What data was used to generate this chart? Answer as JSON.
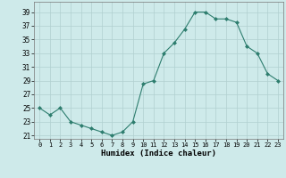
{
  "x": [
    0,
    1,
    2,
    3,
    4,
    5,
    6,
    7,
    8,
    9,
    10,
    11,
    12,
    13,
    14,
    15,
    16,
    17,
    18,
    19,
    20,
    21,
    22,
    23
  ],
  "y": [
    25,
    24,
    25,
    23,
    22.5,
    22,
    21.5,
    21,
    21.5,
    23,
    28.5,
    29,
    33,
    34.5,
    36.5,
    39,
    39,
    38,
    38,
    37.5,
    34,
    33,
    30,
    29
  ],
  "xlabel": "Humidex (Indice chaleur)",
  "line_color": "#2d7d6e",
  "marker": "D",
  "marker_size": 2.0,
  "bg_color": "#ceeaea",
  "grid_color": "#b0d0d0",
  "xlim": [
    -0.5,
    23.5
  ],
  "ylim": [
    20.5,
    40.5
  ],
  "yticks": [
    21,
    23,
    25,
    27,
    29,
    31,
    33,
    35,
    37,
    39
  ],
  "xticks": [
    0,
    1,
    2,
    3,
    4,
    5,
    6,
    7,
    8,
    9,
    10,
    11,
    12,
    13,
    14,
    15,
    16,
    17,
    18,
    19,
    20,
    21,
    22,
    23
  ]
}
